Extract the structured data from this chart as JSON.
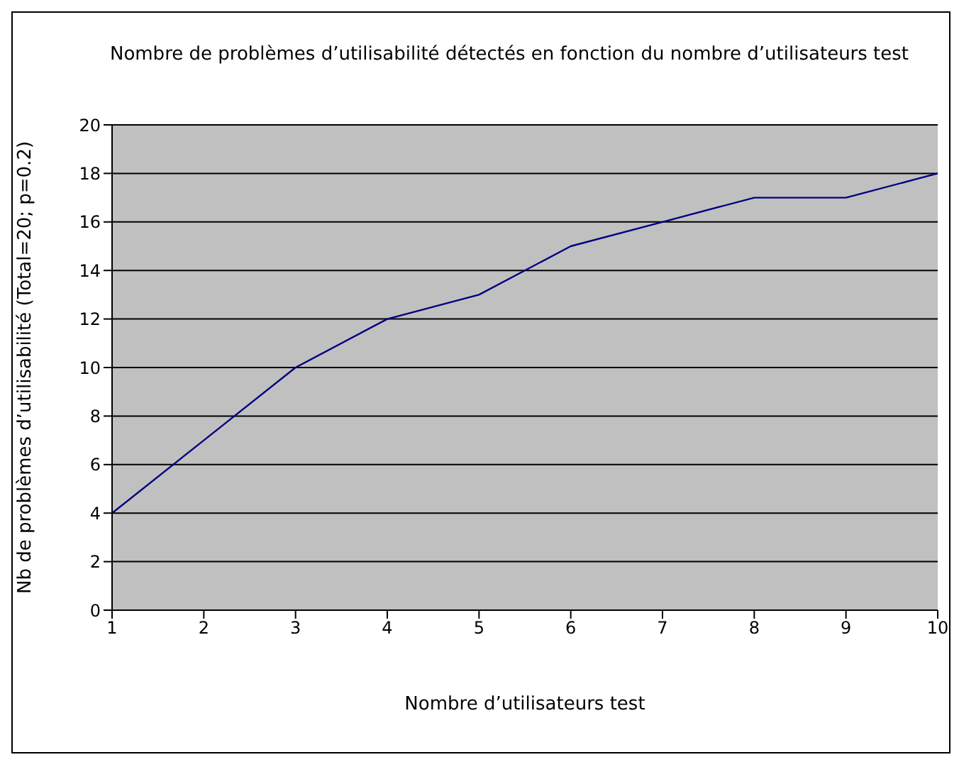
{
  "chart_data": {
    "type": "line",
    "title": "Nombre de problèmes d’utilisabilité détectés en fonction du nombre d’utilisateurs test",
    "xlabel": "Nombre d’utilisateurs test",
    "ylabel": "Nb de problèmes d’utilisabilité (Total=20; p=0.2)",
    "categories": [
      "1",
      "2",
      "3",
      "4",
      "5",
      "6",
      "7",
      "8",
      "9",
      "10"
    ],
    "series": [
      {
        "color": "#000080",
        "values": [
          4,
          7,
          10,
          12,
          13,
          15,
          16,
          17,
          17,
          18
        ]
      }
    ],
    "ylim": [
      0,
      20
    ],
    "yticks": [
      0,
      2,
      4,
      6,
      8,
      10,
      12,
      14,
      16,
      18,
      20
    ],
    "grid": "y",
    "marker": "none",
    "line_style": "solid"
  }
}
